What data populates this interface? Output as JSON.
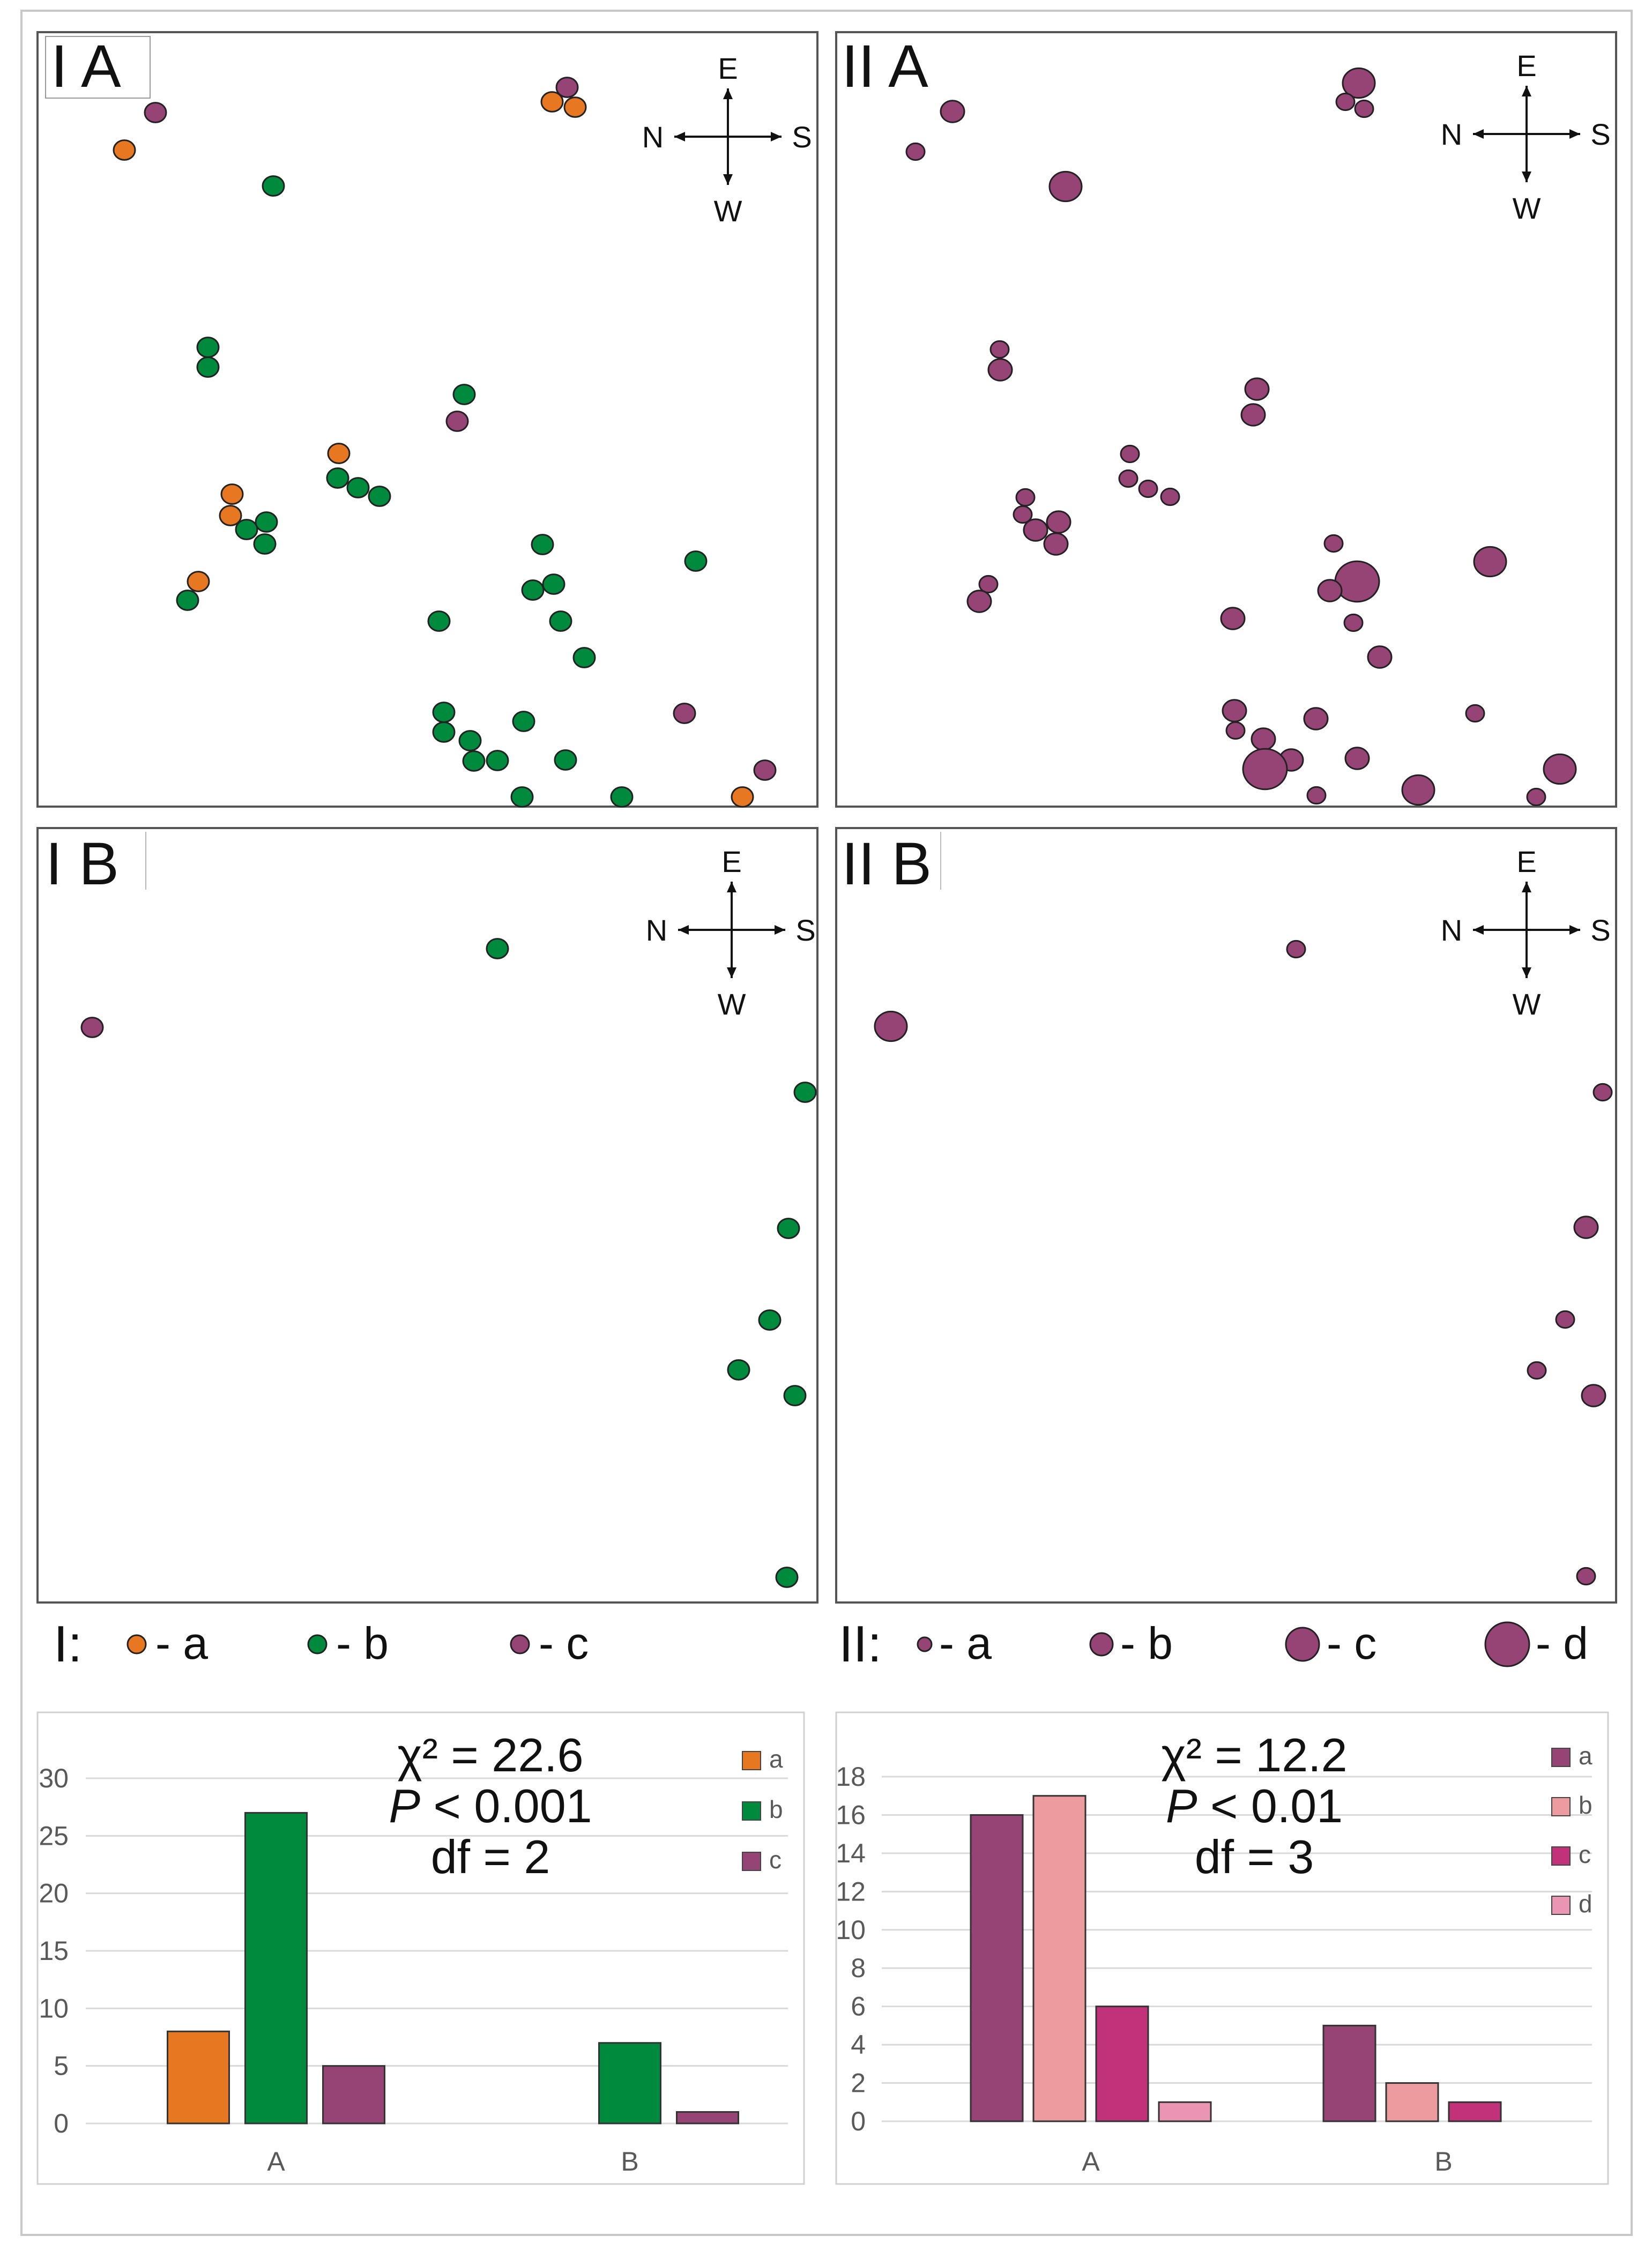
{
  "colors": {
    "a_orange": "#e87722",
    "b_green": "#008a3e",
    "c_purple": "#964376",
    "pink": "#ec9b9f",
    "magenta": "#c2327a",
    "light_pink": "#e995b3",
    "frame": "#555555",
    "grid": "#d9d9d9",
    "axis_text": "#595959"
  },
  "compass": {
    "north": "N",
    "south": "S",
    "east": "E",
    "west": "W"
  },
  "map_panels": {
    "IA": {
      "label": "I A"
    },
    "IIA": {
      "label": "II A"
    },
    "IB": {
      "label": "I B"
    },
    "IIB": {
      "label": "II B"
    }
  },
  "legends": {
    "I": {
      "prefix": "I:",
      "items": [
        {
          "key": "a",
          "label": "- a",
          "color": "#e87722"
        },
        {
          "key": "b",
          "label": "- b",
          "color": "#008a3e"
        },
        {
          "key": "c",
          "label": "- c",
          "color": "#964376"
        }
      ]
    },
    "II": {
      "prefix": "II:",
      "items": [
        {
          "key": "a",
          "label": "- a",
          "color": "#964376"
        },
        {
          "key": "b",
          "label": "- b",
          "color": "#964376"
        },
        {
          "key": "c",
          "label": "- c",
          "color": "#964376"
        },
        {
          "key": "d",
          "label": "- d",
          "color": "#964376"
        }
      ]
    }
  },
  "chart_data": [
    {
      "type": "bar",
      "name": "I",
      "categories": [
        "A",
        "B"
      ],
      "series": [
        {
          "name": "a",
          "color": "#e87722",
          "values": [
            8,
            0
          ]
        },
        {
          "name": "b",
          "color": "#008a3e",
          "values": [
            27,
            7
          ]
        },
        {
          "name": "c",
          "color": "#964376",
          "values": [
            5,
            1
          ]
        }
      ],
      "ylim": [
        0,
        30
      ],
      "yticks": [
        0,
        5,
        10,
        15,
        20,
        25,
        30
      ],
      "grid": true,
      "legend": "right",
      "stats": {
        "chi": "χ² = 22.6",
        "p_label": "P",
        "p_rest": " < 0.001",
        "df": "df = 2"
      }
    },
    {
      "type": "bar",
      "name": "II",
      "categories": [
        "A",
        "B"
      ],
      "series": [
        {
          "name": "a",
          "color": "#964376",
          "values": [
            16,
            5
          ]
        },
        {
          "name": "b",
          "color": "#ec9b9f",
          "values": [
            17,
            2
          ]
        },
        {
          "name": "c",
          "color": "#c2327a",
          "values": [
            6,
            1
          ]
        },
        {
          "name": "d",
          "color": "#e995b3",
          "values": [
            1,
            0
          ]
        }
      ],
      "ylim": [
        0,
        18
      ],
      "yticks": [
        0,
        2,
        4,
        6,
        8,
        10,
        12,
        14,
        16,
        18
      ],
      "grid": true,
      "legend": "right",
      "stats": {
        "chi": "χ² = 12.2",
        "p_label": "P",
        "p_rest": " < 0.01",
        "df": "df = 3"
      }
    }
  ]
}
